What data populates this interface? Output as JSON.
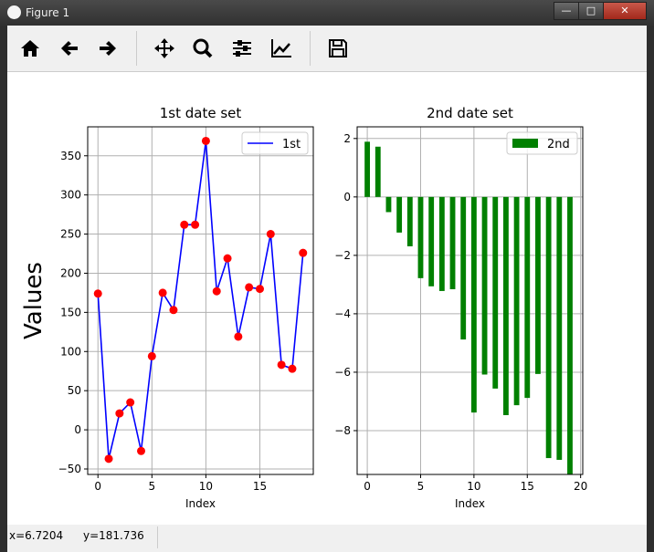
{
  "window": {
    "title": "Figure 1",
    "minimize": "—",
    "maximize": "□",
    "close": "✕"
  },
  "toolbar": {
    "items": [
      "home-icon",
      "back-icon",
      "forward-icon",
      "pan-icon",
      "zoom-icon",
      "subplots-icon",
      "customize-icon",
      "save-icon"
    ]
  },
  "status": {
    "x": "x=6.7204",
    "y": "y=181.736"
  },
  "chart_data": [
    {
      "type": "line",
      "title": "1st date set",
      "xlabel": "Index",
      "ylabel": "Values",
      "legend": "top-right",
      "grid": true,
      "series": [
        {
          "name": "1st",
          "line_color": "#0000ff",
          "marker_color": "#ff0000",
          "x": [
            0,
            1,
            2,
            3,
            4,
            5,
            6,
            7,
            8,
            9,
            10,
            11,
            12,
            13,
            14,
            15,
            16,
            17,
            18,
            19
          ],
          "values": [
            174,
            -37,
            21,
            35,
            -27,
            94,
            175,
            153,
            262,
            262,
            369,
            177,
            219,
            119,
            182,
            180,
            250,
            83,
            78,
            226
          ]
        }
      ],
      "xlim": [
        -0.95,
        19.95
      ],
      "ylim": [
        -57,
        387
      ],
      "xticks": [
        0,
        5,
        10,
        15
      ],
      "yticks": [
        -50,
        0,
        50,
        100,
        150,
        200,
        250,
        300,
        350
      ]
    },
    {
      "type": "bar",
      "title": "2nd date set",
      "xlabel": "Index",
      "legend": "top-right",
      "grid": true,
      "series": [
        {
          "name": "2nd",
          "color": "#008000",
          "x": [
            0,
            1,
            2,
            3,
            4,
            5,
            6,
            7,
            8,
            9,
            10,
            11,
            12,
            13,
            14,
            15,
            16,
            17,
            18,
            19
          ],
          "values": [
            1.89,
            1.72,
            -0.52,
            -1.22,
            -1.69,
            -2.78,
            -3.06,
            -3.22,
            -3.16,
            -4.88,
            -7.38,
            -6.08,
            -6.56,
            -7.47,
            -7.13,
            -6.88,
            -6.06,
            -8.94,
            -9.0,
            -9.8
          ]
        }
      ],
      "xlim": [
        -0.95,
        20.2
      ],
      "ylim": [
        -9.5,
        2.4
      ],
      "xticks": [
        0,
        5,
        10,
        15,
        20
      ],
      "yticks": [
        2,
        0,
        -2,
        -4,
        -6,
        -8
      ]
    }
  ]
}
